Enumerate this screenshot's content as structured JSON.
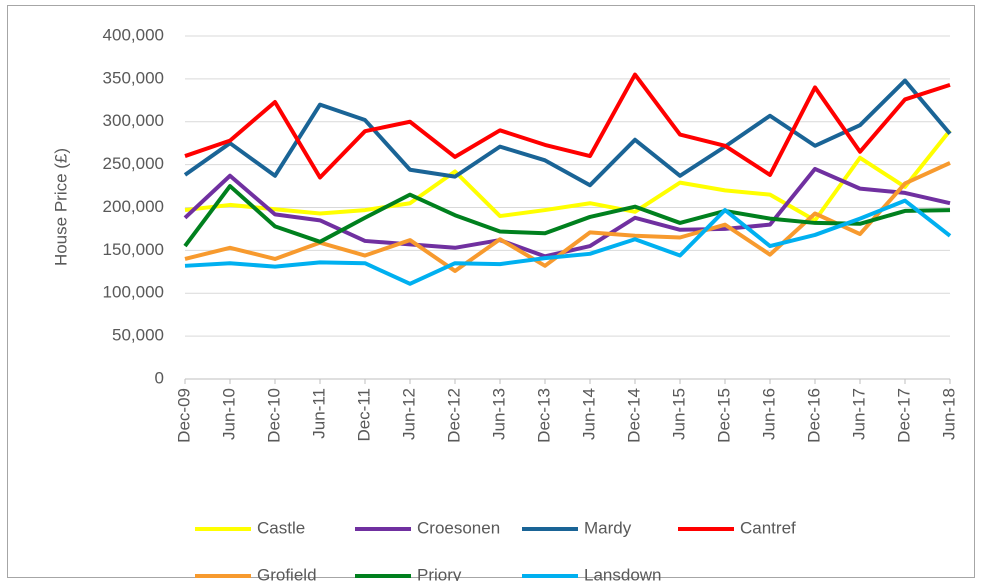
{
  "chart_data": {
    "type": "line",
    "y_label": "House Price (£)",
    "categories": [
      "Dec-09",
      "Jun-10",
      "Dec-10",
      "Jun-11",
      "Dec-11",
      "Jun-12",
      "Dec-12",
      "Jun-13",
      "Dec-13",
      "Jun-14",
      "Dec-14",
      "Jun-15",
      "Dec-15",
      "Jun-16",
      "Dec-16",
      "Jun-17",
      "Dec-17",
      "Jun-18"
    ],
    "series": [
      {
        "name": "Castle",
        "color": "#ffff00",
        "values": [
          197000,
          203000,
          198000,
          193000,
          197000,
          205000,
          242000,
          190000,
          197000,
          205000,
          195000,
          229000,
          220000,
          215000,
          185000,
          258000,
          224000,
          290000
        ]
      },
      {
        "name": "Croesonen",
        "color": "#7030a0",
        "values": [
          188000,
          237000,
          192000,
          185000,
          161000,
          157000,
          153000,
          162000,
          143000,
          155000,
          188000,
          174000,
          175000,
          180000,
          245000,
          222000,
          217000,
          205000
        ]
      },
      {
        "name": "Mardy",
        "color": "#1a6496",
        "values": [
          238000,
          275000,
          237000,
          320000,
          302000,
          244000,
          236000,
          271000,
          255000,
          226000,
          279000,
          237000,
          271000,
          307000,
          272000,
          296000,
          348000,
          286000
        ]
      },
      {
        "name": "Cantref",
        "color": "#ff0000",
        "values": [
          260000,
          278000,
          323000,
          235000,
          289000,
          300000,
          259000,
          290000,
          273000,
          260000,
          355000,
          285000,
          272000,
          238000,
          340000,
          265000,
          326000,
          343000
        ]
      },
      {
        "name": "Grofield",
        "color": "#f79a2e",
        "values": [
          140000,
          153000,
          140000,
          159000,
          144000,
          162000,
          126000,
          163000,
          132000,
          171000,
          167000,
          165000,
          180000,
          145000,
          193000,
          169000,
          228000,
          252000
        ]
      },
      {
        "name": "Priory",
        "color": "#00801e",
        "values": [
          155000,
          225000,
          178000,
          160000,
          188000,
          215000,
          191000,
          172000,
          170000,
          189000,
          201000,
          182000,
          196000,
          187000,
          182000,
          181000,
          196000,
          197000
        ]
      },
      {
        "name": "Lansdown",
        "color": "#00b0f0",
        "values": [
          132000,
          135000,
          131000,
          136000,
          135000,
          111000,
          135000,
          134000,
          141000,
          146000,
          163000,
          144000,
          197000,
          155000,
          168000,
          187000,
          208000,
          167000
        ]
      }
    ],
    "ylim": [
      0,
      400000
    ],
    "yticks": [
      0,
      {
        "value": 50000,
        "label": "50,000"
      },
      {
        "value": 100000,
        "label": "100,000"
      },
      {
        "value": 150000,
        "label": "150,000"
      },
      {
        "value": 200000,
        "label": "200,000"
      },
      {
        "value": 250000,
        "label": "250,000"
      },
      {
        "value": 300000,
        "label": "300,000"
      },
      {
        "value": 350000,
        "label": "350,000"
      },
      {
        "value": 400000,
        "label": "400,000"
      }
    ],
    "grid": true,
    "legend": "bottom"
  }
}
